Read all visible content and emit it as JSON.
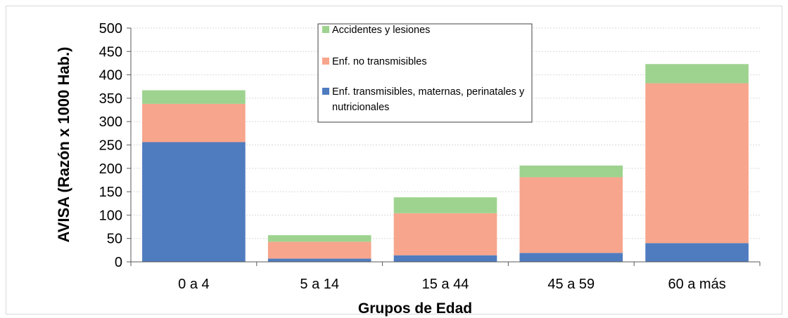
{
  "chart_data": {
    "type": "bar",
    "stacked": true,
    "title": "",
    "xlabel": "Grupos de Edad",
    "ylabel": "AVISA (Razón x 1000 Hab.)",
    "ylim": [
      0,
      500
    ],
    "yticks": [
      0,
      50,
      100,
      150,
      200,
      250,
      300,
      350,
      400,
      450,
      500
    ],
    "grid": true,
    "legend_position": "top-center",
    "categories": [
      "0 a 4",
      "5 a 14",
      "15 a 44",
      "45 a 59",
      "60 a más"
    ],
    "series": [
      {
        "name": "Enf. transmisibles, maternas, perinatales y nutricionales",
        "name_lines": [
          "Enf. transmisibles, maternas, perinatales y",
          "nutricionales"
        ],
        "color": "#4f7bbf",
        "values": [
          256,
          7,
          14,
          19,
          40
        ]
      },
      {
        "name": "Enf. no transmisibles",
        "name_lines": [
          "Enf. no transmisibles"
        ],
        "color": "#f7a58c",
        "values": [
          82,
          36,
          90,
          162,
          342
        ]
      },
      {
        "name": "Accidentes y lesiones",
        "name_lines": [
          "Accidentes y lesiones"
        ],
        "color": "#9dd38f",
        "values": [
          29,
          14,
          34,
          25,
          41
        ]
      }
    ],
    "legend_order": [
      2,
      1,
      0
    ]
  }
}
